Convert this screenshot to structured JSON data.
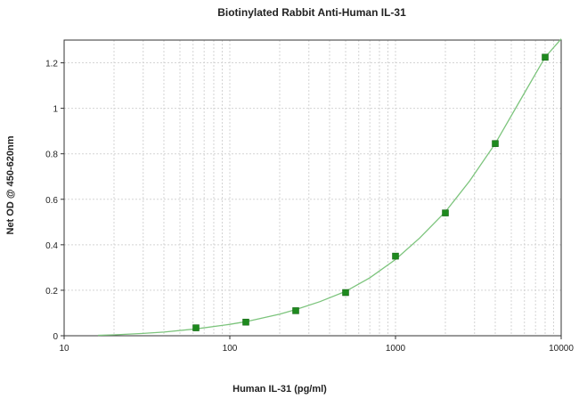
{
  "chart_data": {
    "type": "scatter",
    "title": "Biotinylated Rabbit Anti-Human IL-31",
    "xlabel": "Human IL-31 (pg/ml)",
    "ylabel": "Net OD @ 450-620nm",
    "x_scale": "log",
    "xlim": [
      10,
      10000
    ],
    "ylim": [
      0,
      1.3
    ],
    "x_ticks": [
      10,
      100,
      1000,
      10000
    ],
    "x_tick_labels": [
      "10",
      "100",
      "1000",
      "10000"
    ],
    "y_ticks": [
      0,
      0.2,
      0.4,
      0.6,
      0.8,
      1,
      1.2
    ],
    "y_tick_labels": [
      "0",
      "0.2",
      "0.4",
      "0.6",
      "0.8",
      "1",
      "1.2"
    ],
    "grid": true,
    "series": [
      {
        "type": "scatter",
        "marker": "square",
        "color": "#1e8a1e",
        "x": [
          62.5,
          125,
          250,
          500,
          1000,
          2000,
          4000,
          8000
        ],
        "y": [
          0.035,
          0.06,
          0.11,
          0.19,
          0.35,
          0.54,
          0.845,
          1.225
        ]
      },
      {
        "type": "line",
        "color": "#7cc47c",
        "fit": true,
        "x": [
          16,
          20,
          30,
          40,
          62.5,
          100,
          125,
          200,
          250,
          350,
          500,
          700,
          1000,
          1400,
          2000,
          2800,
          4000,
          5600,
          8000,
          10000
        ],
        "y": [
          0.002,
          0.004,
          0.01,
          0.016,
          0.03,
          0.05,
          0.062,
          0.095,
          0.115,
          0.15,
          0.195,
          0.255,
          0.335,
          0.43,
          0.545,
          0.68,
          0.845,
          1.03,
          1.225,
          1.305
        ]
      }
    ]
  }
}
